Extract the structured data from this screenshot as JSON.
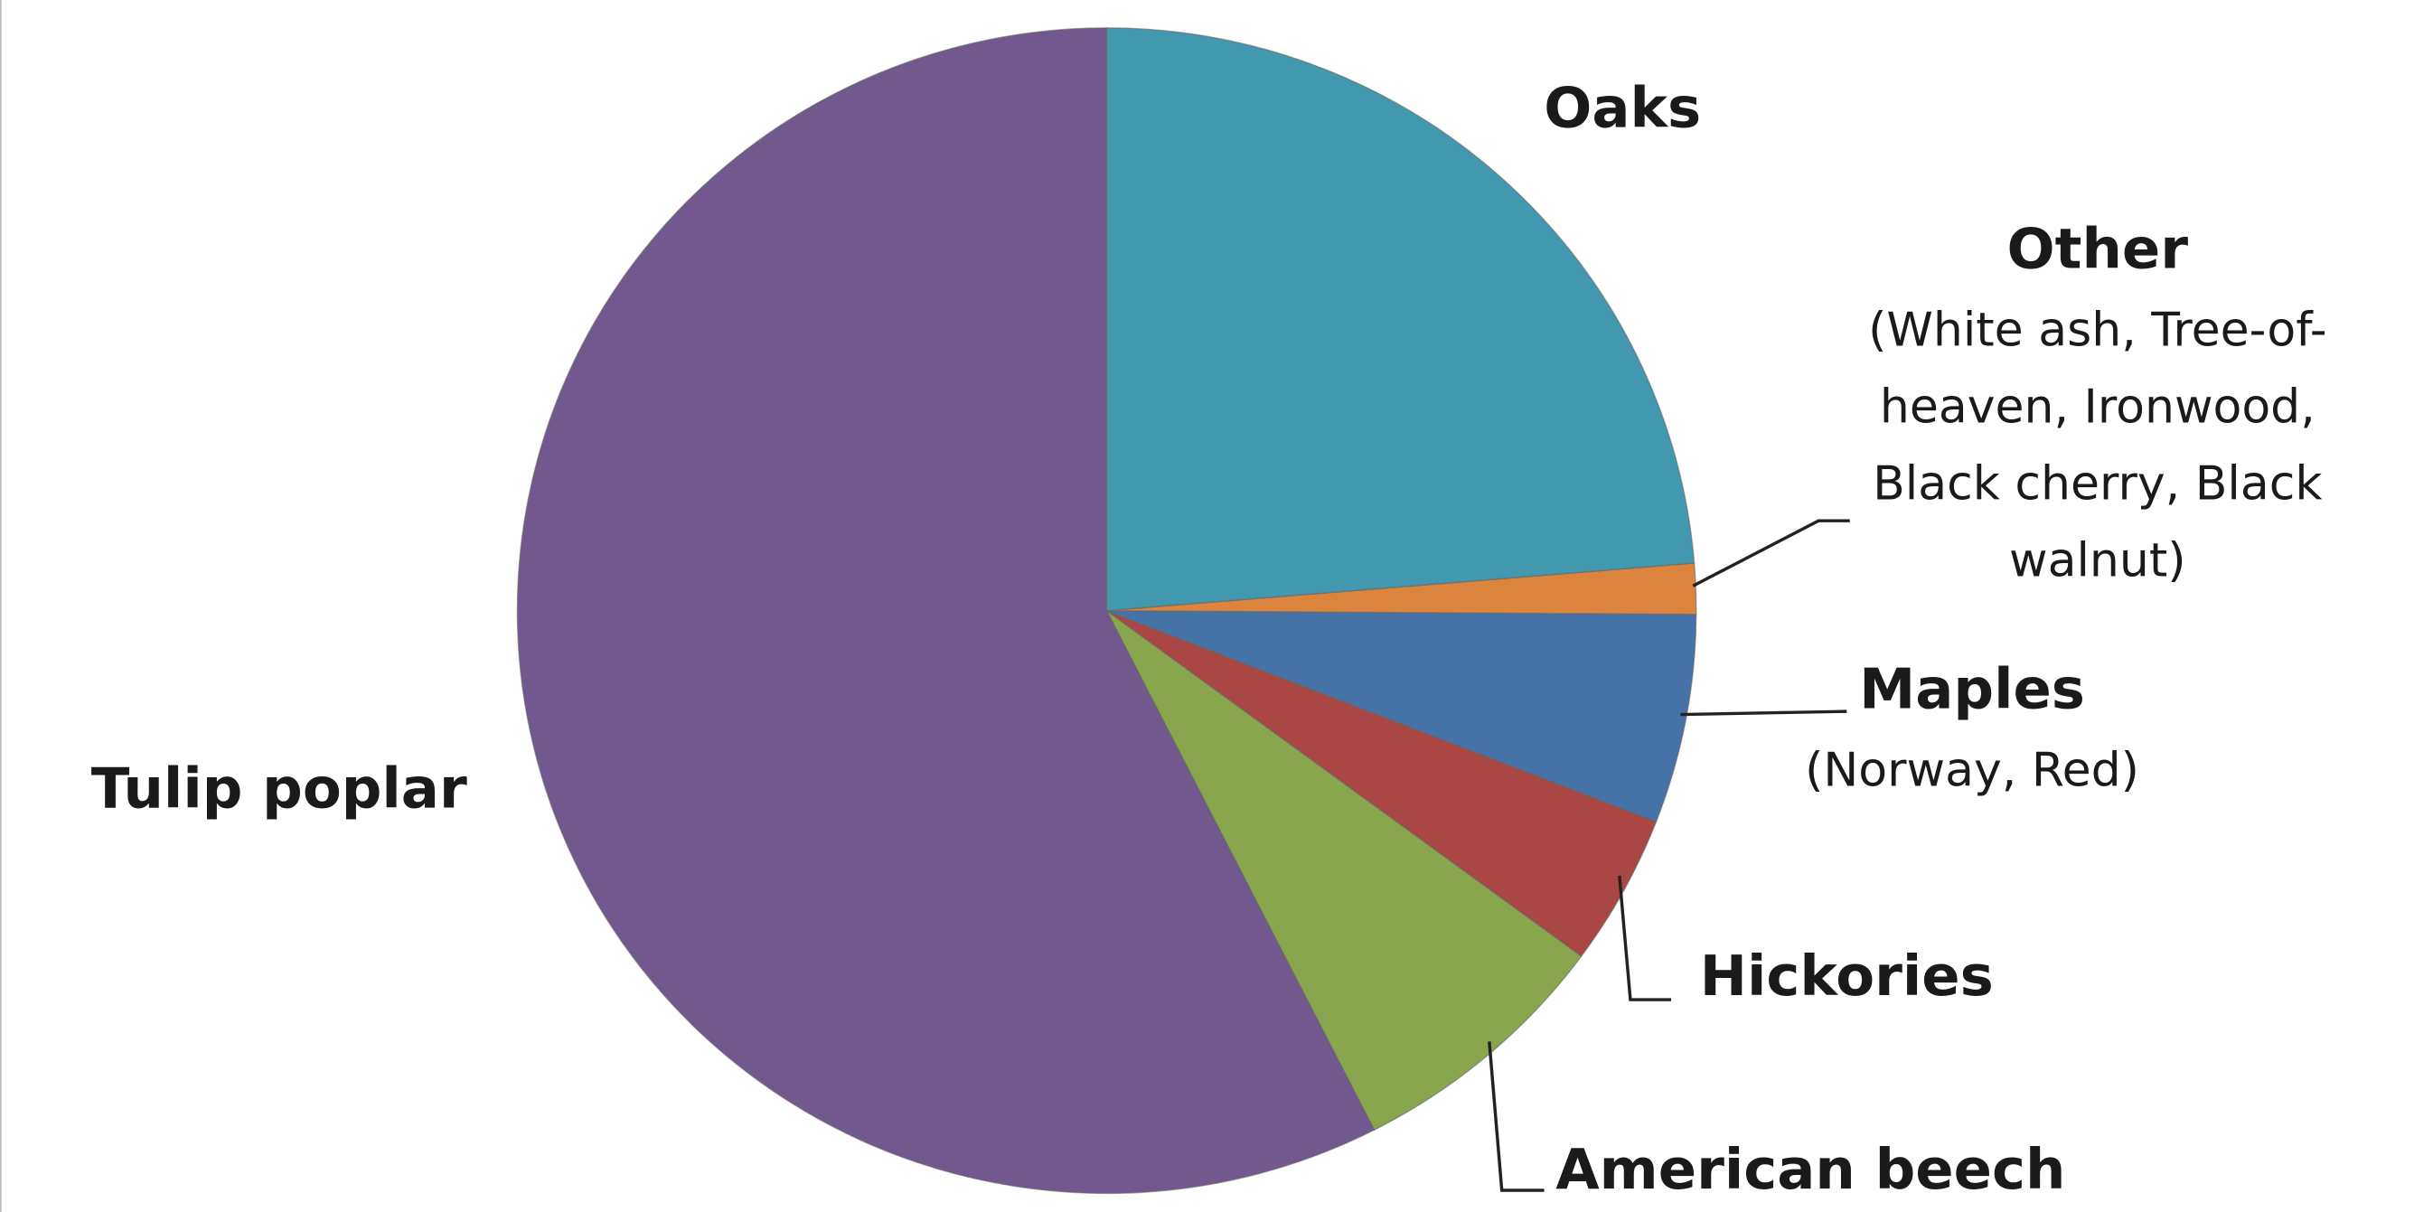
{
  "chart_data": {
    "type": "pie",
    "categories": [
      "Oaks",
      "Other",
      "Maples",
      "Hickories",
      "American beech",
      "Tulip poplar"
    ],
    "values": [
      23.7,
      1.4,
      5.8,
      4.2,
      7.4,
      57.5
    ],
    "colors": [
      "#4198af",
      "#db843d",
      "#4572a7",
      "#aa4643",
      "#89a54e",
      "#71588f"
    ],
    "details": {
      "Other": [
        "(White ash, Tree-of-",
        "heaven, Ironwood,",
        "Black cherry, Black",
        "walnut)"
      ],
      "Maples": [
        "(Norway, Red)"
      ]
    }
  }
}
